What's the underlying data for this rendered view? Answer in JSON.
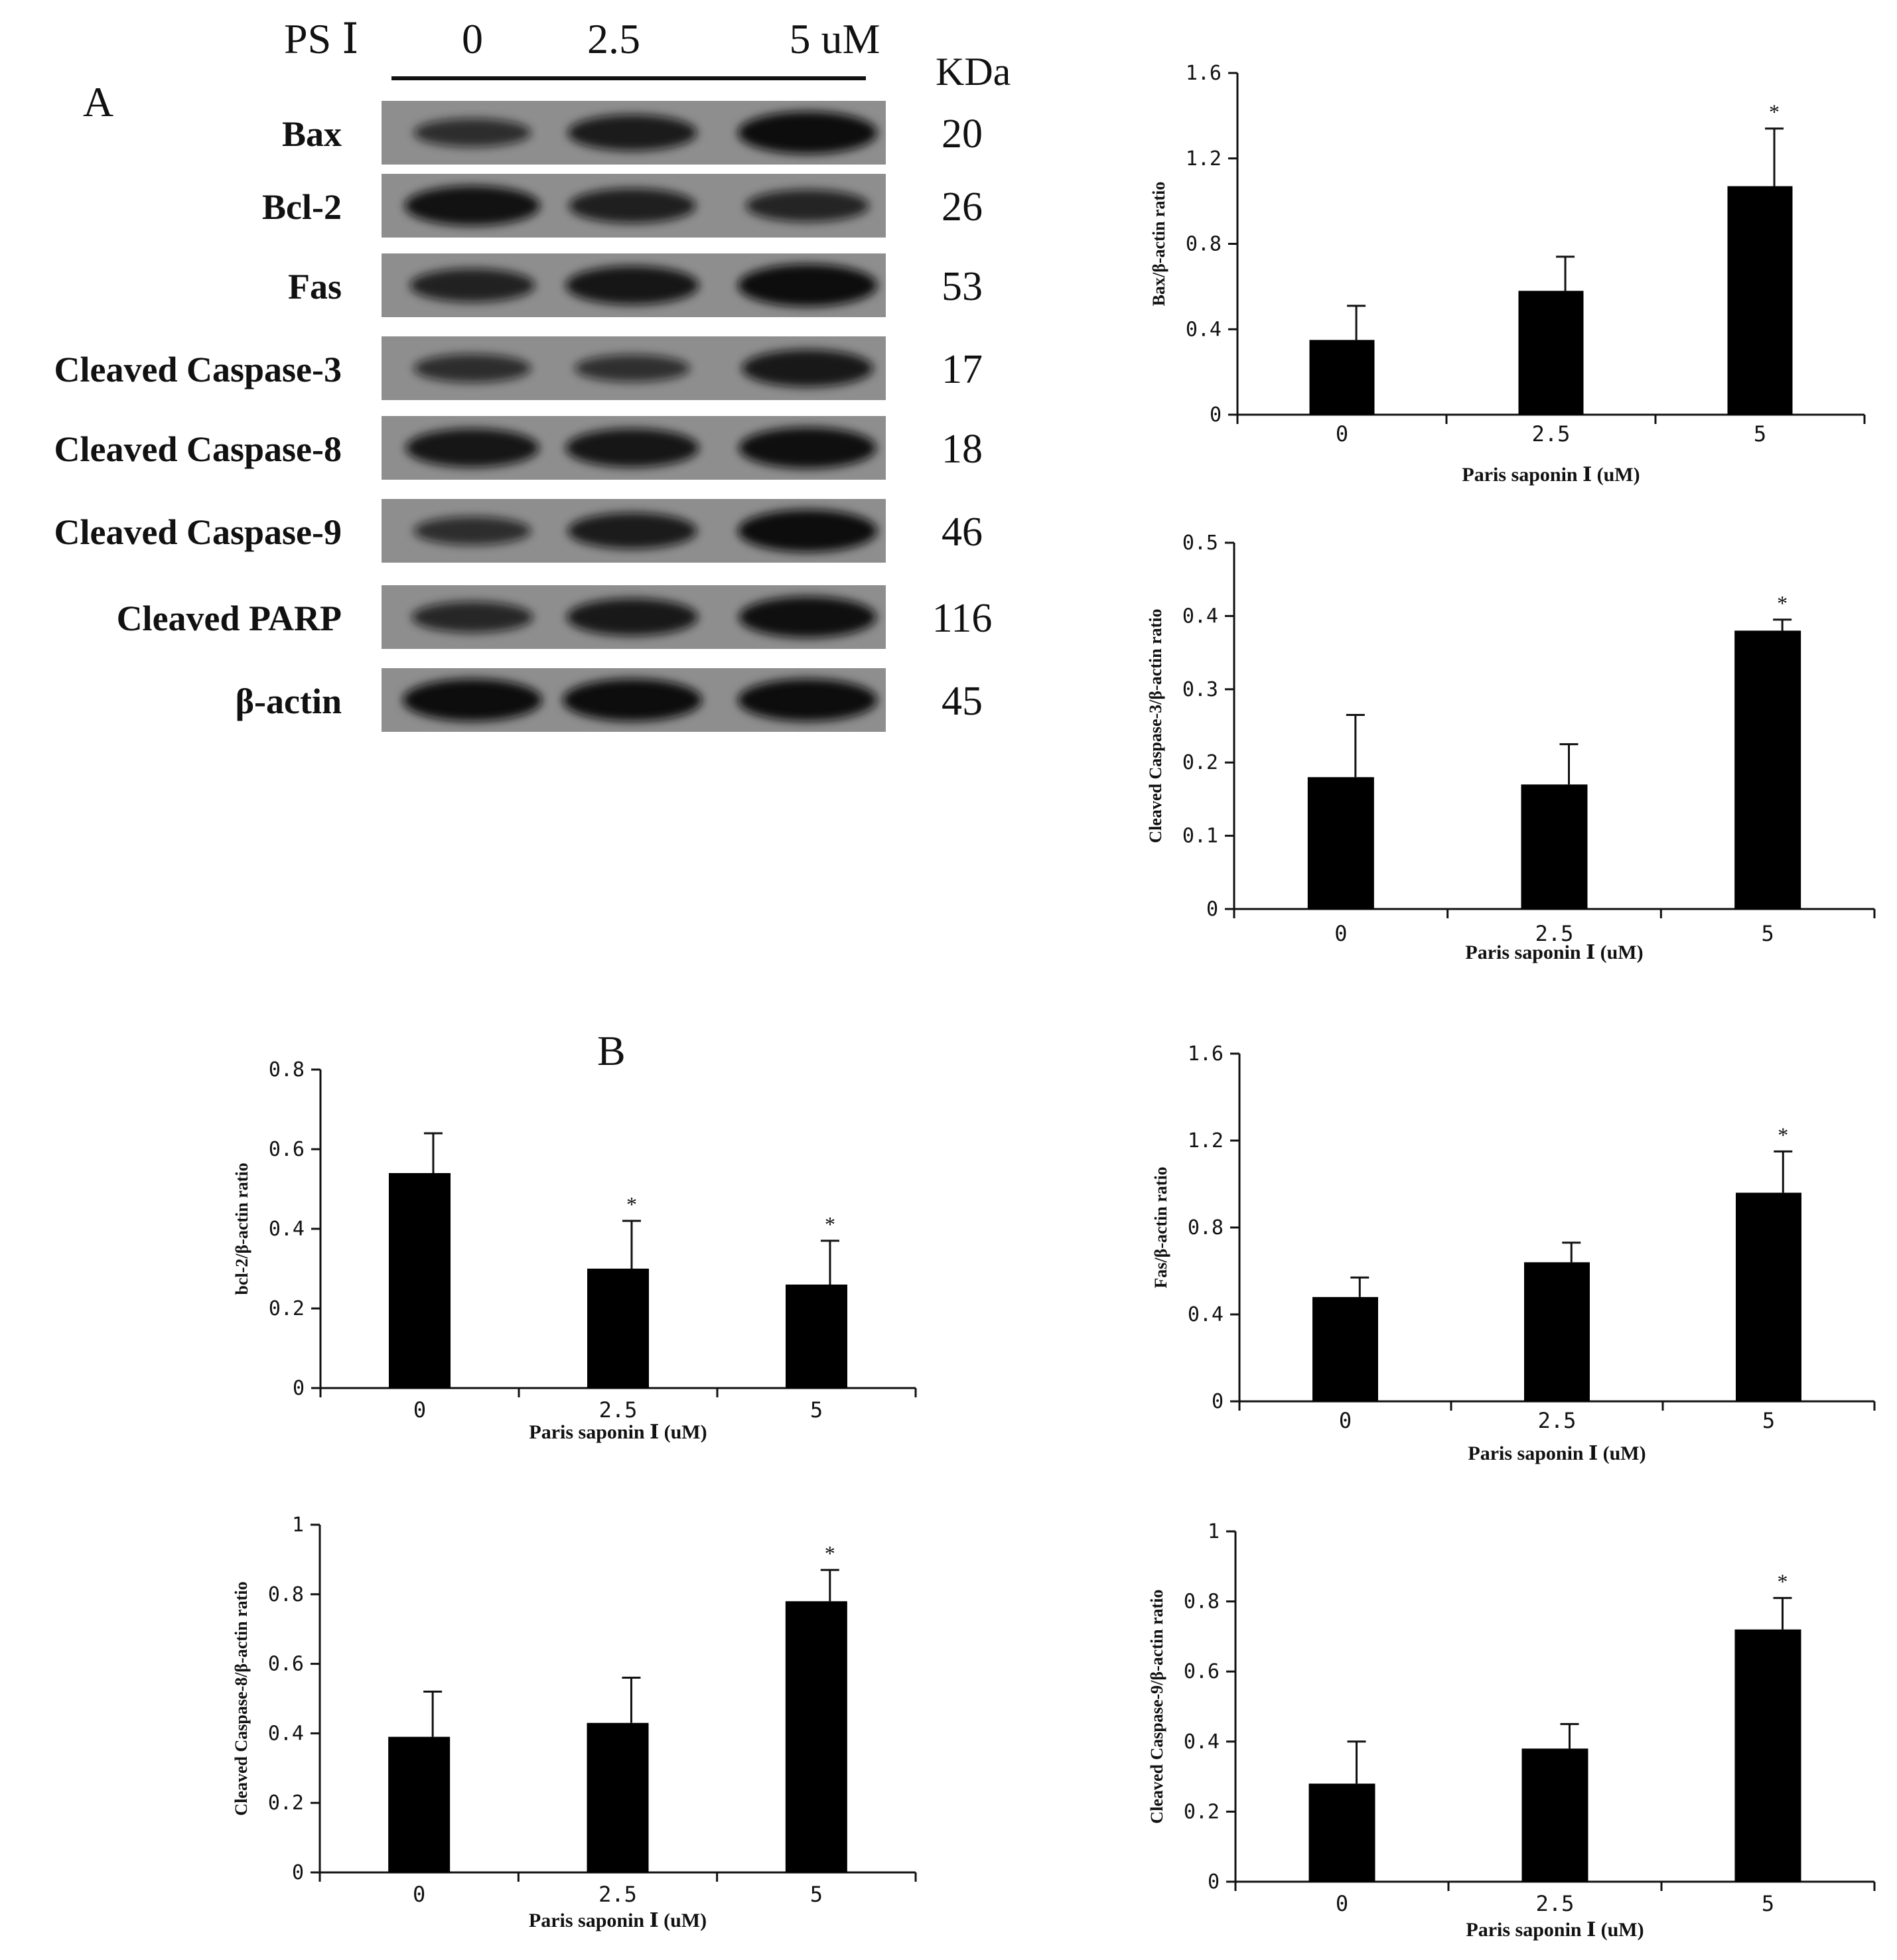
{
  "blot": {
    "panel_label": "A",
    "treatment_label": "PS Ⅰ",
    "lane_labels": [
      "0",
      "2.5",
      "5 uM"
    ],
    "kda_header": "KDa",
    "rows": [
      {
        "protein": "Bax",
        "kda": "20",
        "intensity": [
          0.45,
          0.75,
          1.0
        ]
      },
      {
        "protein": "Bcl-2",
        "kda": "26",
        "intensity": [
          0.9,
          0.7,
          0.6
        ]
      },
      {
        "protein": "Fas",
        "kda": "53",
        "intensity": [
          0.65,
          0.85,
          1.0
        ]
      },
      {
        "protein": "Cleaved Caspase-3",
        "kda": "17",
        "intensity": [
          0.45,
          0.4,
          0.8
        ]
      },
      {
        "protein": "Cleaved Caspase-8",
        "kda": "18",
        "intensity": [
          0.85,
          0.85,
          0.95
        ]
      },
      {
        "protein": "Cleaved Caspase-9",
        "kda": "46",
        "intensity": [
          0.45,
          0.75,
          1.0
        ]
      },
      {
        "protein": "Cleaved PARP",
        "kda": "116",
        "intensity": [
          0.55,
          0.8,
          0.95
        ]
      },
      {
        "protein": "β-actin",
        "kda": "45",
        "intensity": [
          1.0,
          1.0,
          1.0
        ]
      }
    ]
  },
  "panel_b_label": "B",
  "chart_data": [
    {
      "id": "bax",
      "type": "bar",
      "categories": [
        "0",
        "2.5",
        "5"
      ],
      "values": [
        0.35,
        0.58,
        1.07
      ],
      "errors": [
        0.16,
        0.16,
        0.27
      ],
      "significance": [
        "",
        "",
        "*"
      ],
      "ylabel": "Bax/β-actin ratio",
      "xlabel": "Paris saponin Ⅰ (uM)",
      "ylim": [
        0,
        1.6
      ],
      "yticks": [
        0,
        0.4,
        0.8,
        1.2,
        1.6
      ],
      "ytick_labels": [
        "0",
        "0.4",
        "0.8",
        "1.2",
        "1.6"
      ]
    },
    {
      "id": "casp3",
      "type": "bar",
      "categories": [
        "0",
        "2.5",
        "5"
      ],
      "values": [
        0.18,
        0.17,
        0.38
      ],
      "errors": [
        0.085,
        0.055,
        0.015
      ],
      "significance": [
        "",
        "",
        "*"
      ],
      "ylabel": "Cleaved Caspase-3/β-actin ratio",
      "xlabel": "Paris saponin Ⅰ (uM)",
      "ylim": [
        0,
        0.5
      ],
      "yticks": [
        0,
        0.1,
        0.2,
        0.3,
        0.4,
        0.5
      ],
      "ytick_labels": [
        "0",
        "0.1",
        "0.2",
        "0.3",
        "0.4",
        "0.5"
      ]
    },
    {
      "id": "bcl2",
      "type": "bar",
      "categories": [
        "0",
        "2.5",
        "5"
      ],
      "values": [
        0.54,
        0.3,
        0.26
      ],
      "errors": [
        0.1,
        0.12,
        0.11
      ],
      "significance": [
        "",
        "*",
        "*"
      ],
      "ylabel": "bcl-2/β-actin ratio",
      "xlabel": "Paris saponin Ⅰ (uM)",
      "ylim": [
        0,
        0.8
      ],
      "yticks": [
        0,
        0.2,
        0.4,
        0.6,
        0.8
      ],
      "ytick_labels": [
        "0",
        "0.2",
        "0.4",
        "0.6",
        "0.8"
      ]
    },
    {
      "id": "fas",
      "type": "bar",
      "categories": [
        "0",
        "2.5",
        "5"
      ],
      "values": [
        0.48,
        0.64,
        0.96
      ],
      "errors": [
        0.09,
        0.09,
        0.19
      ],
      "significance": [
        "",
        "",
        "*"
      ],
      "ylabel": "Fas/β-actin ratio",
      "xlabel": "Paris saponin Ⅰ (uM)",
      "ylim": [
        0,
        1.6
      ],
      "yticks": [
        0,
        0.4,
        0.8,
        1.2,
        1.6
      ],
      "ytick_labels": [
        "0",
        "0.4",
        "0.8",
        "1.2",
        "1.6"
      ]
    },
    {
      "id": "casp8",
      "type": "bar",
      "categories": [
        "0",
        "2.5",
        "5"
      ],
      "values": [
        0.39,
        0.43,
        0.78
      ],
      "errors": [
        0.13,
        0.13,
        0.09
      ],
      "significance": [
        "",
        "",
        "*"
      ],
      "ylabel": "Cleaved Caspase-8/β-actin ratio",
      "xlabel": "Paris saponin Ⅰ (uM)",
      "ylim": [
        0,
        1
      ],
      "yticks": [
        0,
        0.2,
        0.4,
        0.6,
        0.8,
        1
      ],
      "ytick_labels": [
        "0",
        "0.2",
        "0.4",
        "0.6",
        "0.8",
        "1"
      ]
    },
    {
      "id": "casp9",
      "type": "bar",
      "categories": [
        "0",
        "2.5",
        "5"
      ],
      "values": [
        0.28,
        0.38,
        0.72
      ],
      "errors": [
        0.12,
        0.07,
        0.09
      ],
      "significance": [
        "",
        "",
        "*"
      ],
      "ylabel": "Cleaved Caspase-9/β-actin ratio",
      "xlabel": "Paris saponin Ⅰ (uM)",
      "ylim": [
        0,
        1
      ],
      "yticks": [
        0,
        0.2,
        0.4,
        0.6,
        0.8,
        1
      ],
      "ytick_labels": [
        "0",
        "0.2",
        "0.4",
        "0.6",
        "0.8",
        "1"
      ]
    }
  ]
}
